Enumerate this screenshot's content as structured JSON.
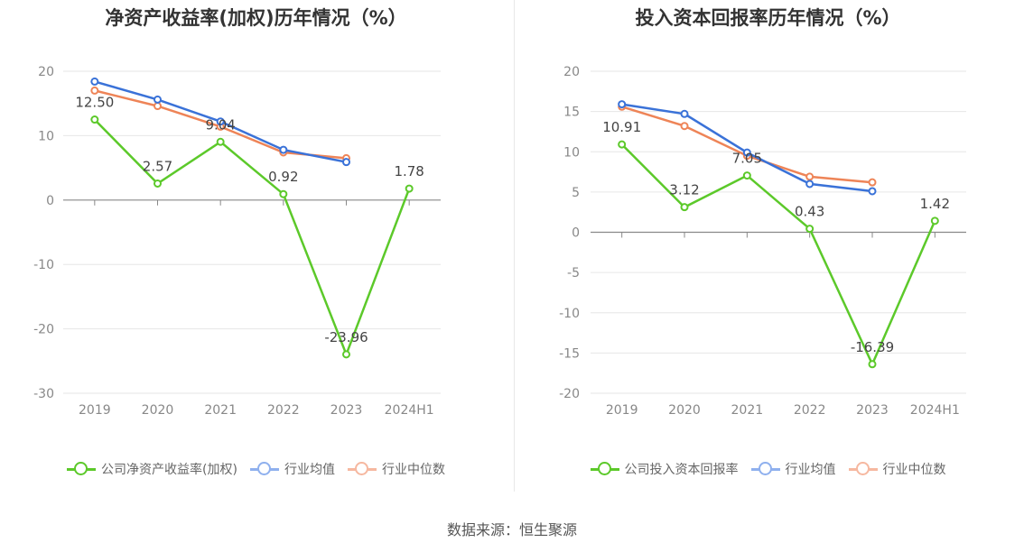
{
  "source": "数据来源：恒生聚源",
  "colors": {
    "company": "#5cc92a",
    "avg": "#3a72d8",
    "median": "#ee8457",
    "avg_legend": "#8fb0ee",
    "median_legend": "#f6b8a0"
  },
  "chart_data": [
    {
      "type": "line",
      "title": "净资产收益率(加权)历年情况（%）",
      "categories": [
        "2019",
        "2020",
        "2021",
        "2022",
        "2023",
        "2024H1"
      ],
      "ylim": [
        -30,
        20
      ],
      "yticks": [
        20,
        10,
        0,
        -10,
        -20,
        -30
      ],
      "grid": true,
      "legend_position": "bottom",
      "series": [
        {
          "name": "公司净资产收益率(加权)",
          "key": "company",
          "values": [
            12.5,
            2.57,
            9.04,
            0.92,
            -23.96,
            1.78
          ],
          "labels": [
            "12.50",
            "2.57",
            "9.04",
            "0.92",
            "-23.96",
            "1.78"
          ]
        },
        {
          "name": "行业均值",
          "key": "avg",
          "values": [
            18.4,
            15.6,
            12.2,
            7.8,
            5.9,
            null
          ]
        },
        {
          "name": "行业中位数",
          "key": "median",
          "values": [
            17.0,
            14.6,
            11.4,
            7.4,
            6.5,
            null
          ]
        }
      ]
    },
    {
      "type": "line",
      "title": "投入资本回报率历年情况（%）",
      "categories": [
        "2019",
        "2020",
        "2021",
        "2022",
        "2023",
        "2024H1"
      ],
      "ylim": [
        -20,
        20
      ],
      "yticks": [
        20,
        15,
        10,
        5,
        0,
        -5,
        -10,
        -15,
        -20
      ],
      "grid": true,
      "legend_position": "bottom",
      "series": [
        {
          "name": "公司投入资本回报率",
          "key": "company",
          "values": [
            10.91,
            3.12,
            7.05,
            0.43,
            -16.39,
            1.42
          ],
          "labels": [
            "10.91",
            "3.12",
            "7.05",
            "0.43",
            "-16.39",
            "1.42"
          ]
        },
        {
          "name": "行业均值",
          "key": "avg",
          "values": [
            15.9,
            14.7,
            9.9,
            6.0,
            5.1,
            null
          ]
        },
        {
          "name": "行业中位数",
          "key": "median",
          "values": [
            15.6,
            13.2,
            9.5,
            6.9,
            6.2,
            null
          ]
        }
      ]
    }
  ]
}
